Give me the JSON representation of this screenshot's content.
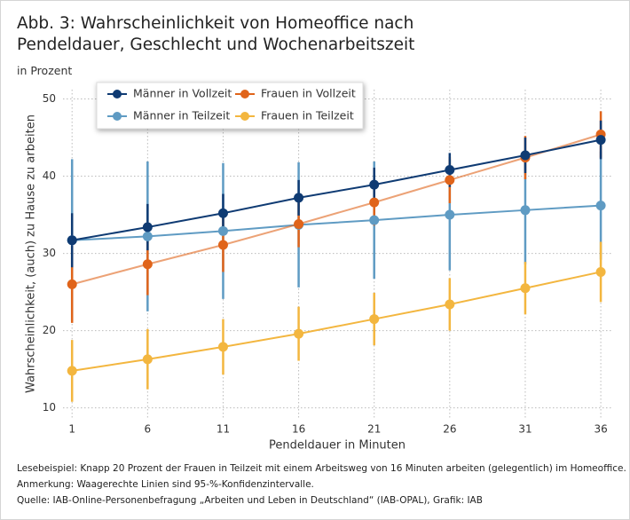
{
  "chart_data": {
    "type": "line",
    "title": "Abb. 3: Wahrscheinlichkeit von Homeoffice nach Pendeldauer, Geschlecht und Wochenarbeitszeit",
    "subtitle": "in Prozent",
    "x_label": "Pendeldauer in Minuten",
    "y_label": "Wahrscheinlichkeit, (auch) zu Hause zu arbeiten",
    "x": [
      1,
      6,
      11,
      16,
      21,
      26,
      31,
      36
    ],
    "xlim": [
      0.4,
      36.7
    ],
    "xticks": [
      1,
      6,
      11,
      16,
      21,
      26,
      31,
      36
    ],
    "ylim": [
      8.7,
      51.2
    ],
    "yticks": [
      10,
      20,
      30,
      40,
      50
    ],
    "grid": true,
    "series": [
      {
        "name": "Männer in Vollzeit",
        "color": "#0f3b73",
        "values": [
          31.7,
          33.4,
          35.2,
          37.2,
          38.9,
          40.8,
          42.7,
          44.7
        ],
        "errors": [
          3.5,
          3.0,
          2.5,
          2.3,
          2.2,
          2.2,
          2.3,
          2.5
        ]
      },
      {
        "name": "Frauen in Vollzeit",
        "color": "#e0641a",
        "values": [
          26.0,
          28.6,
          31.1,
          33.8,
          36.6,
          39.5,
          42.4,
          45.4
        ],
        "errors": [
          5.0,
          4.0,
          3.5,
          3.0,
          3.0,
          3.0,
          2.8,
          3.0
        ]
      },
      {
        "name": "Männer in Teilzeit",
        "color": "#5f9bc3",
        "values": [
          31.7,
          32.2,
          32.9,
          33.7,
          34.3,
          35.0,
          35.6,
          36.2
        ],
        "errors": [
          10.5,
          9.7,
          8.8,
          8.1,
          7.6,
          7.2,
          7.0,
          7.0
        ]
      },
      {
        "name": "Frauen in Teilzeit",
        "color": "#f3b63f",
        "values": [
          14.8,
          16.3,
          17.9,
          19.6,
          21.5,
          23.4,
          25.5,
          27.6
        ],
        "errors": [
          4.0,
          3.9,
          3.6,
          3.5,
          3.4,
          3.4,
          3.4,
          3.9
        ]
      }
    ],
    "notes": [
      "Lesebeispiel: Knapp 20 Prozent  der Frauen in Teilzeit mit einem Arbeitsweg von 16 Minuten arbeiten (gelegentlich) im Homeoffice.",
      "Anmerkung: Waagerechte Linien sind 95-%-Konfidenzintervalle.",
      "Quelle: IAB-Online-Personenbefragung „Arbeiten und Leben in Deutschland“ (IAB-OPAL), Grafik: IAB"
    ]
  }
}
